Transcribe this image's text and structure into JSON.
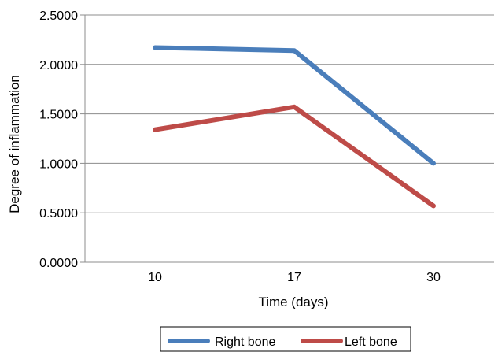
{
  "chart_data": {
    "type": "line",
    "title": "",
    "xlabel": "Time (days)",
    "ylabel": "Degree of inflammation",
    "categories": [
      "10",
      "17",
      "30"
    ],
    "series": [
      {
        "name": "Right bone",
        "color": "#4a7ebb",
        "values": [
          2.17,
          2.14,
          1.0
        ]
      },
      {
        "name": "Left bone",
        "color": "#be4b48",
        "values": [
          1.34,
          1.57,
          0.57
        ]
      }
    ],
    "ylim": [
      0,
      2.5
    ],
    "yticks": [
      "0.0000",
      "0.5000",
      "1.0000",
      "1.5000",
      "2.0000",
      "2.5000"
    ],
    "grid": true,
    "legend_position": "bottom"
  }
}
